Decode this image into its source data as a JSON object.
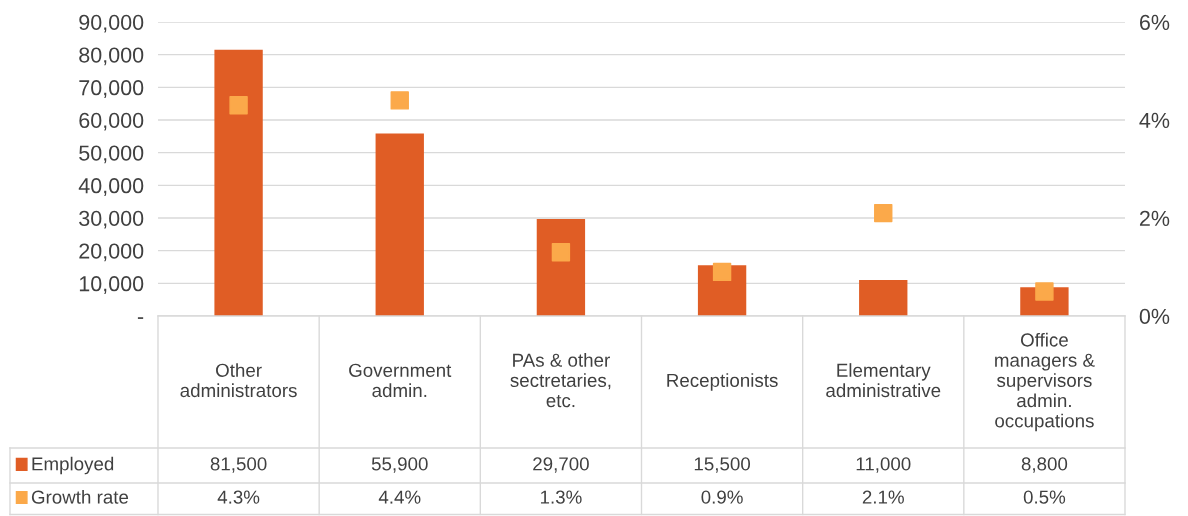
{
  "chart_data": {
    "type": "bar",
    "categories": [
      "Other\nadministrators",
      "Government\nadmin.",
      "PAs & other\nsectretaries,\netc.",
      "Receptionists",
      "Elementary\nadministrative",
      "Office\nmanagers &\nsupervisors\nadmin.\noccupations"
    ],
    "series": [
      {
        "name": "Employed",
        "color": "#e05d25",
        "values": [
          81500,
          55900,
          29700,
          15500,
          11000,
          8800
        ],
        "value_labels": [
          "81,500",
          "55,900",
          "29,700",
          "15,500",
          "11,000",
          "8,800"
        ]
      },
      {
        "name": "Growth rate",
        "type": "scatter",
        "axis": "y2",
        "marker": "square",
        "color": "#fba94a",
        "values": [
          4.3,
          4.4,
          1.3,
          0.9,
          2.1,
          0.5
        ],
        "value_labels": [
          "4.3%",
          "4.4%",
          "1.3%",
          "0.9%",
          "2.1%",
          "0.5%"
        ]
      }
    ],
    "ylim": [
      0,
      90000
    ],
    "yticks": [
      {
        "value": 0,
        "label": "-"
      },
      {
        "value": 10000,
        "label": "10,000"
      },
      {
        "value": 20000,
        "label": "20,000"
      },
      {
        "value": 30000,
        "label": "30,000"
      },
      {
        "value": 40000,
        "label": "40,000"
      },
      {
        "value": 50000,
        "label": "50,000"
      },
      {
        "value": 60000,
        "label": "60,000"
      },
      {
        "value": 70000,
        "label": "70,000"
      },
      {
        "value": 80000,
        "label": "80,000"
      },
      {
        "value": 90000,
        "label": "90,000"
      }
    ],
    "y2lim": [
      0,
      6
    ],
    "y2ticks": [
      {
        "value": 0,
        "label": "0%"
      },
      {
        "value": 2,
        "label": "2%"
      },
      {
        "value": 4,
        "label": "4%"
      },
      {
        "value": 6,
        "label": "6%"
      }
    ],
    "grid": "y",
    "legend": "bottom"
  }
}
